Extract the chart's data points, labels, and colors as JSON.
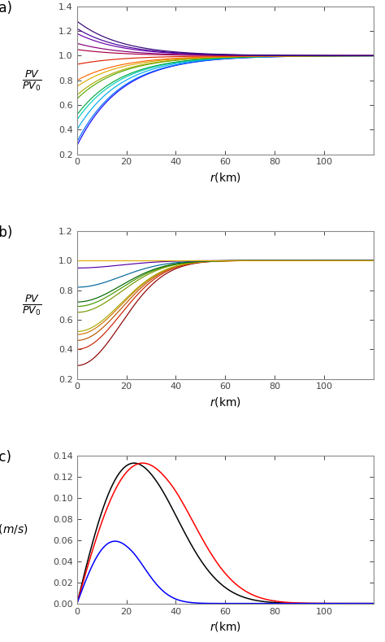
{
  "panel_a": {
    "label": "(a)",
    "ylim": [
      0.2,
      1.4
    ],
    "yticks": [
      0.2,
      0.4,
      0.6,
      0.8,
      1.0,
      1.2,
      1.4
    ],
    "xlim": [
      0,
      120
    ],
    "xticks": [
      0,
      20,
      40,
      60,
      80,
      100
    ],
    "xlabel": "r(km)",
    "r0": 18,
    "pv0_values": [
      0.27,
      0.3,
      0.4,
      0.48,
      0.52,
      0.65,
      0.68,
      0.75,
      0.8,
      0.93,
      1.05,
      1.1,
      1.18,
      1.22,
      1.28
    ],
    "colors_a": [
      "#1500ff",
      "#006eff",
      "#00aaee",
      "#00ccbb",
      "#00aa44",
      "#55aa00",
      "#aaaa00",
      "#ddaa00",
      "#ff6600",
      "#dd2200",
      "#aa0044",
      "#880077",
      "#6600aa",
      "#440099",
      "#330077"
    ]
  },
  "panel_b": {
    "label": "(b)",
    "ylim": [
      0.2,
      1.2
    ],
    "yticks": [
      0.2,
      0.4,
      0.6,
      0.8,
      1.0,
      1.2
    ],
    "xlim": [
      0,
      120
    ],
    "xticks": [
      0,
      20,
      40,
      60,
      80,
      100
    ],
    "xlabel": "r(km)",
    "r0": 25,
    "pv0_values": [
      0.29,
      0.4,
      0.46,
      0.5,
      0.52,
      0.65,
      0.69,
      0.72,
      0.82,
      0.95,
      1.0
    ],
    "colors_b": [
      "#8b0000",
      "#cc2200",
      "#bb5500",
      "#cc7700",
      "#aaaa00",
      "#779900",
      "#449900",
      "#006600",
      "#006699",
      "#5500aa",
      "#ddaa00"
    ]
  },
  "panel_c": {
    "label": "(c)",
    "ylim": [
      0,
      0.14
    ],
    "yticks": [
      0.0,
      0.02,
      0.04,
      0.06,
      0.08,
      0.1,
      0.12,
      0.14
    ],
    "xlim": [
      0,
      120
    ],
    "xticks": [
      0,
      20,
      40,
      60,
      80,
      100
    ],
    "xlabel": "r(km)",
    "curves": [
      {
        "color": "black",
        "r_peak": 33,
        "decay": 38,
        "amp": 0.133
      },
      {
        "color": "red",
        "r_peak": 38,
        "decay": 28,
        "amp": 0.133
      },
      {
        "color": "blue",
        "r_peak": 22,
        "decay": 15,
        "amp": 0.059
      }
    ]
  },
  "spine_color": "#888888",
  "tick_color": "#444444",
  "tick_fontsize": 8,
  "axis_label_fontsize": 10,
  "panel_label_fontsize": 12
}
